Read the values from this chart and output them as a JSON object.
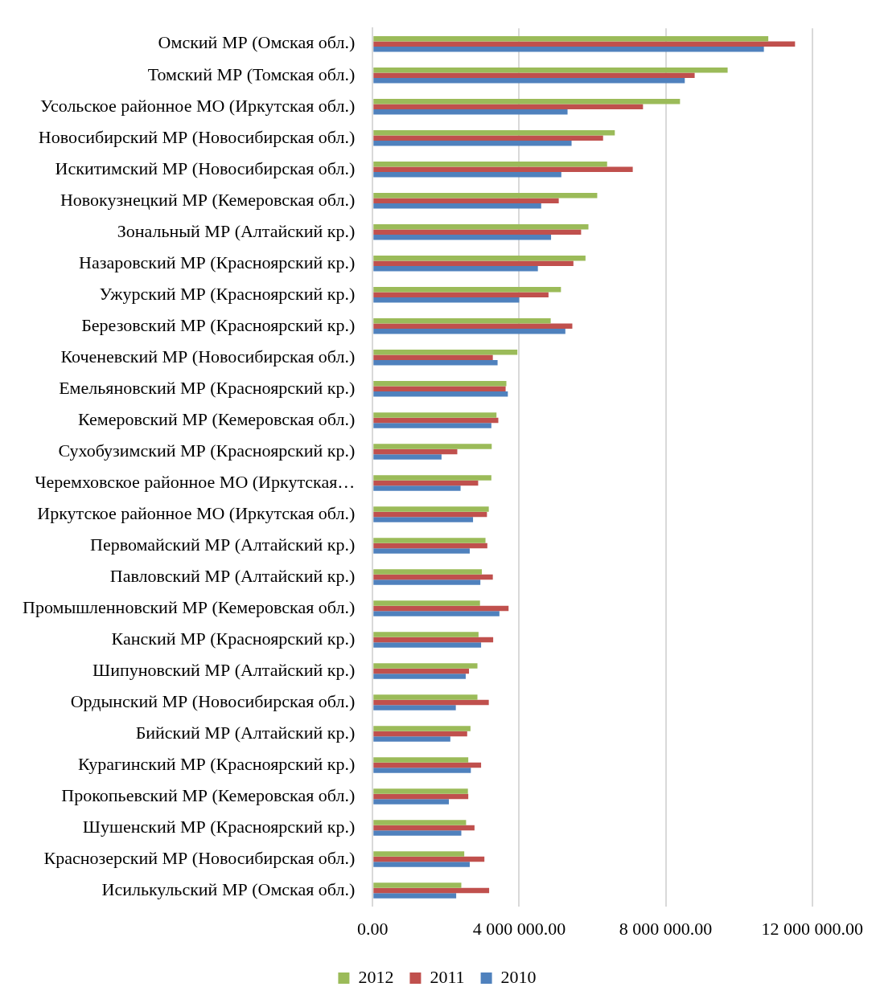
{
  "chart_data": {
    "type": "bar",
    "orientation": "horizontal",
    "categories": [
      "Омский МР (Омская обл.)",
      "Томский МР (Томская обл.)",
      "Усольское районное МО (Иркутская обл.)",
      "Новосибирский МР (Новосибирская обл.)",
      "Искитимский МР (Новосибирская обл.)",
      "Новокузнецкий МР (Кемеровская обл.)",
      "Зональный МР (Алтайский кр.)",
      "Назаровский МР (Красноярский кр.)",
      "Ужурский МР (Красноярский кр.)",
      "Березовский МР (Красноярский кр.)",
      "Коченевский МР (Новосибирская обл.)",
      "Емельяновский МР (Красноярский кр.)",
      "Кемеровский МР (Кемеровская обл.)",
      "Сухобузимский МР (Красноярский кр.)",
      "Черемховское районное МО (Иркутская…",
      "Иркутское районное МО (Иркутская обл.)",
      "Первомайский МР (Алтайский кр.)",
      "Павловский МР (Алтайский кр.)",
      "Промышленновский МР (Кемеровская обл.)",
      "Канский МР (Красноярский кр.)",
      "Шипуновский МР (Алтайский кр.)",
      "Ордынский МР (Новосибирская обл.)",
      "Бийский МР (Алтайский кр.)",
      "Курагинский МР (Красноярский кр.)",
      "Прокопьевский МР (Кемеровская обл.)",
      "Шушенский МР (Красноярский кр.)",
      "Краснозерский МР (Новосибирская обл.)",
      "Исилькульский МР (Омская обл.)"
    ],
    "series": [
      {
        "name": "2012",
        "color": "#9bbb59",
        "values": [
          10800000,
          9690000,
          8390000,
          6610000,
          6400000,
          6130000,
          5890000,
          5810000,
          5140000,
          4860000,
          3950000,
          3650000,
          3380000,
          3250000,
          3240000,
          3170000,
          3080000,
          2980000,
          2930000,
          2890000,
          2860000,
          2860000,
          2670000,
          2610000,
          2600000,
          2550000,
          2500000,
          2420000
        ]
      },
      {
        "name": "2011",
        "color": "#c0504d",
        "values": [
          11530000,
          8790000,
          7380000,
          6290000,
          7100000,
          5080000,
          5690000,
          5480000,
          4800000,
          5450000,
          3280000,
          3630000,
          3430000,
          2310000,
          2880000,
          3120000,
          3130000,
          3280000,
          3710000,
          3290000,
          2630000,
          3170000,
          2580000,
          2960000,
          2610000,
          2780000,
          3050000,
          3180000
        ]
      },
      {
        "name": "2010",
        "color": "#4f81bd",
        "values": [
          10680000,
          8520000,
          5320000,
          5430000,
          5150000,
          4600000,
          4870000,
          4510000,
          4000000,
          5260000,
          3410000,
          3690000,
          3240000,
          1880000,
          2400000,
          2740000,
          2650000,
          2940000,
          3460000,
          2960000,
          2540000,
          2270000,
          2120000,
          2680000,
          2080000,
          2420000,
          2650000,
          2280000
        ]
      }
    ],
    "xlim": [
      0,
      12000000
    ],
    "xticks": [
      {
        "value": 0,
        "label": "0.00"
      },
      {
        "value": 4000000,
        "label": "4 000 000.00"
      },
      {
        "value": 8000000,
        "label": "8 000 000.00"
      },
      {
        "value": 12000000,
        "label": "12 000 000.00"
      }
    ],
    "grid": "x",
    "legend": "bottom"
  }
}
